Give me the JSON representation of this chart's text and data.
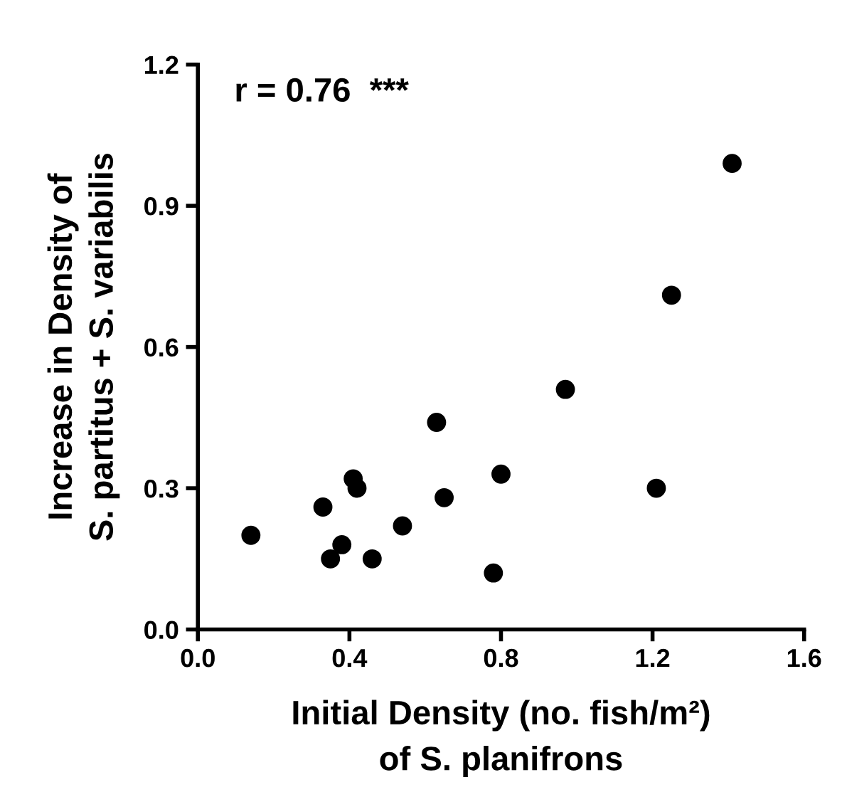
{
  "chart_data": {
    "type": "scatter",
    "xlabel": "Initial Density (no. fish/m²)\nof S. planifrons",
    "ylabel": "Increase in Density of\nS. partitus + S. variabilis",
    "annotations": [
      "r = 0.76  ***"
    ],
    "series": [
      {
        "color": "#000000",
        "x": [
          0.14,
          0.33,
          0.35,
          0.38,
          0.41,
          0.42,
          0.46,
          0.54,
          0.63,
          0.65,
          0.78,
          0.8,
          0.97,
          1.21,
          1.25,
          1.41
        ],
        "values": [
          0.2,
          0.26,
          0.15,
          0.18,
          0.32,
          0.3,
          0.15,
          0.22,
          0.44,
          0.28,
          0.12,
          0.33,
          0.51,
          0.3,
          0.71,
          0.99
        ]
      }
    ],
    "xlim": [
      0,
      1.6
    ],
    "ylim": [
      0,
      1.2
    ],
    "xticks": [
      {
        "value": 0,
        "label": "0.0"
      },
      0.4,
      0.8,
      1.2,
      1.6
    ],
    "yticks": [
      {
        "value": 0,
        "label": "0.0"
      },
      0.3,
      0.6,
      0.9,
      1.2
    ],
    "marker": "circle",
    "grid": false,
    "legend": false
  }
}
